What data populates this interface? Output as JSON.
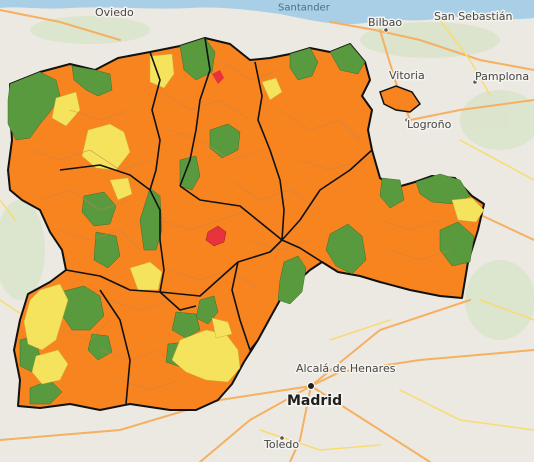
{
  "map": {
    "cities": [
      {
        "id": "oviedo",
        "name": "Oviedo"
      },
      {
        "id": "bilbao",
        "name": "Bilbao"
      },
      {
        "id": "san-sebastian",
        "name": "San Sebastián"
      },
      {
        "id": "vitoria",
        "name": "Vitoria"
      },
      {
        "id": "pamplona",
        "name": "Pamplona"
      },
      {
        "id": "logrono",
        "name": "Logroño"
      },
      {
        "id": "alcala",
        "name": "Alcalá de Henares"
      },
      {
        "id": "madrid",
        "name": "Madrid"
      },
      {
        "id": "toledo",
        "name": "Toledo"
      }
    ],
    "sea_label": "Santander",
    "colors": {
      "sea": "#a9cfe6",
      "land": "#ece9e2",
      "region_orange": "#f7841f",
      "zone_green": "#5a9a3f",
      "zone_yellow": "#f5e35e",
      "zone_red": "#e8323c",
      "highway_orange": "#f5b062",
      "road_yellow": "#f7dc6f",
      "province_border": "#111111",
      "municipal_border": "#c47a4a"
    }
  }
}
